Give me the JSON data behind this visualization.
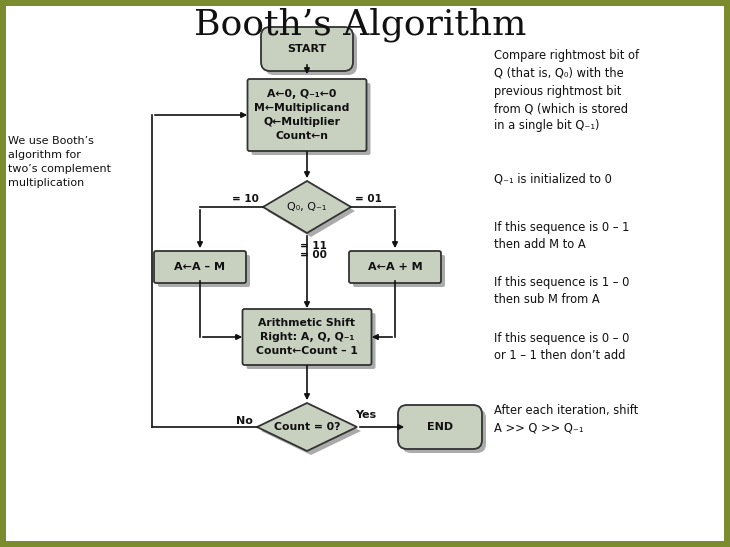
{
  "title": "Booth’s Algorithm",
  "title_fontsize": 26,
  "title_font": "serif",
  "bg_color": "#7a8c2e",
  "inner_bg": "#ffffff",
  "box_fill": "#c8d0c0",
  "box_edge": "#333333",
  "arrow_color": "#111111",
  "text_color": "#111111",
  "left_note": "We use Booth’s\nalgorithm for\ntwo’s complement\nmultiplication",
  "right_notes": [
    "Compare rightmost bit of\nQ (that is, Q₀) with the\nprevious rightmost bit\nfrom Q (which is stored\nin a single bit Q₋₁)",
    "Q₋₁ is initialized to 0",
    "If this sequence is 0 – 1\nthen add M to A",
    "If this sequence is 1 – 0\nthen sub M from A",
    "If this sequence is 0 – 0\nor 1 – 1 then don’t add",
    "After each iteration, shift\nA >> Q >> Q₋₁"
  ],
  "start_label": "START",
  "init_box_lines": [
    "A←0, Q₋₁←0",
    "M←Multiplicand",
    "Q←Multiplier",
    "Count←n"
  ],
  "diamond_label": "Q₀, Q₋₁",
  "left_branch_label": "A←A – M",
  "right_branch_label": "A←A + M",
  "shift_box_lines": [
    "Arithmetic Shift",
    "Right: A, Q, Q₋₁",
    "Count←Count – 1"
  ],
  "end_label": "END",
  "count_diamond_label": "Count = 0?",
  "label_10": "= 10",
  "label_01": "= 01",
  "label_11": "= 11",
  "label_00": "= 00",
  "label_no": "No",
  "label_yes": "Yes",
  "shadow_color": "#888888"
}
